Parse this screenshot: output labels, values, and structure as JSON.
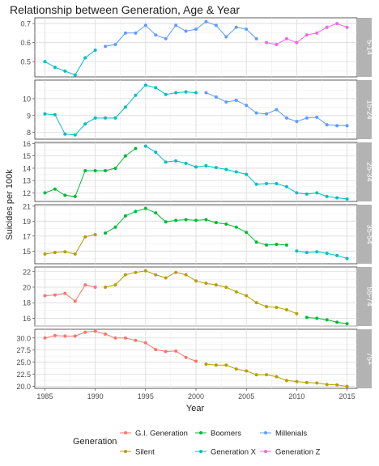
{
  "chart_data": {
    "type": "line",
    "title": "Relationship between Generation, Age & Year",
    "xlabel": "Year",
    "ylabel": "Suicides per 100k",
    "xlim": [
      1984,
      2016
    ],
    "x_ticks": [
      1985,
      1990,
      1995,
      2000,
      2005,
      2010,
      2015
    ],
    "grid": true,
    "legend": {
      "title": "Generation",
      "position": "bottom",
      "entries": [
        {
          "name": "G.I. Generation",
          "color": "#F8766D"
        },
        {
          "name": "Boomers",
          "color": "#00BA38"
        },
        {
          "name": "Millenials",
          "color": "#619CFF"
        },
        {
          "name": "Silent",
          "color": "#B79F00"
        },
        {
          "name": "Generation X",
          "color": "#00BFC4"
        },
        {
          "name": "Generation Z",
          "color": "#F564E3"
        }
      ]
    },
    "panels": [
      {
        "strip": "5-14",
        "ylim": [
          0.42,
          0.73
        ],
        "y_ticks": [
          0.5,
          0.6,
          0.7
        ],
        "y_tick_labels": [
          "0.5",
          "0.6",
          "0.7"
        ],
        "series": [
          {
            "generation": "Generation X",
            "color": "#00BFC4",
            "x": [
              1985,
              1986,
              1987,
              1988,
              1989,
              1990
            ],
            "y": [
              0.5,
              0.47,
              0.45,
              0.43,
              0.52,
              0.56
            ]
          },
          {
            "generation": "Millenials",
            "color": "#619CFF",
            "x": [
              1991,
              1992,
              1993,
              1994,
              1995,
              1996,
              1997,
              1998,
              1999,
              2000,
              2001,
              2002,
              2003,
              2004,
              2005,
              2006
            ],
            "y": [
              0.58,
              0.59,
              0.65,
              0.65,
              0.69,
              0.64,
              0.62,
              0.69,
              0.66,
              0.67,
              0.71,
              0.69,
              0.63,
              0.68,
              0.67,
              0.62
            ]
          },
          {
            "generation": "Generation Z",
            "color": "#F564E3",
            "x": [
              2007,
              2008,
              2009,
              2010,
              2011,
              2012,
              2013,
              2014,
              2015
            ],
            "y": [
              0.6,
              0.59,
              0.62,
              0.6,
              0.64,
              0.65,
              0.68,
              0.7,
              0.68
            ]
          }
        ]
      },
      {
        "strip": "15-24",
        "ylim": [
          7.6,
          11.1
        ],
        "y_ticks": [
          8,
          9,
          10
        ],
        "y_tick_labels": [
          "8",
          "9",
          "10"
        ],
        "series": [
          {
            "generation": "Generation X",
            "color": "#00BFC4",
            "x": [
              1985,
              1986,
              1987,
              1988,
              1989,
              1990,
              1991,
              1992,
              1993,
              1994,
              1995,
              1996,
              1997,
              1998,
              1999,
              2000
            ],
            "y": [
              9.1,
              9.05,
              7.9,
              7.85,
              8.5,
              8.85,
              8.85,
              8.85,
              9.5,
              10.2,
              10.8,
              10.65,
              10.25,
              10.35,
              10.4,
              10.35
            ]
          },
          {
            "generation": "Millenials",
            "color": "#619CFF",
            "x": [
              2001,
              2002,
              2003,
              2004,
              2005,
              2006,
              2007,
              2008,
              2009,
              2010,
              2011,
              2012,
              2013,
              2014,
              2015
            ],
            "y": [
              10.35,
              10.1,
              9.8,
              9.9,
              9.6,
              9.15,
              9.1,
              9.35,
              8.85,
              8.65,
              8.85,
              8.9,
              8.45,
              8.4,
              8.4
            ]
          }
        ]
      },
      {
        "strip": "25-34",
        "ylim": [
          11.3,
          16.1
        ],
        "y_ticks": [
          12,
          13,
          14,
          15,
          16
        ],
        "y_tick_labels": [
          "12",
          "13",
          "14",
          "15",
          "16"
        ],
        "series": [
          {
            "generation": "Boomers",
            "color": "#00BA38",
            "x": [
              1985,
              1986,
              1987,
              1988,
              1989,
              1990,
              1991,
              1992,
              1993,
              1994
            ],
            "y": [
              12.0,
              12.3,
              11.8,
              11.7,
              13.8,
              13.8,
              13.8,
              14.0,
              15.0,
              15.6
            ]
          },
          {
            "generation": "Generation X",
            "color": "#00BFC4",
            "x": [
              1995,
              1996,
              1997,
              1998,
              1999,
              2000,
              2001,
              2002,
              2003,
              2004,
              2005,
              2006,
              2007,
              2008,
              2009,
              2010,
              2011,
              2012,
              2013,
              2014,
              2015
            ],
            "y": [
              15.8,
              15.3,
              14.5,
              14.6,
              14.4,
              14.1,
              14.2,
              14.05,
              13.9,
              13.7,
              13.5,
              12.7,
              12.75,
              12.75,
              12.5,
              12.0,
              11.9,
              12.0,
              11.7,
              11.6,
              11.5
            ]
          }
        ]
      },
      {
        "strip": "35-54",
        "ylim": [
          13.3,
          21.2
        ],
        "y_ticks": [
          15,
          17,
          19,
          21
        ],
        "y_tick_labels": [
          "15",
          "17",
          "19",
          "21"
        ],
        "series": [
          {
            "generation": "Silent",
            "color": "#B79F00",
            "x": [
              1985,
              1986,
              1987,
              1988,
              1989,
              1990
            ],
            "y": [
              14.6,
              14.8,
              14.9,
              14.6,
              16.9,
              17.2
            ]
          },
          {
            "generation": "Boomers",
            "color": "#00BA38",
            "x": [
              1991,
              1992,
              1993,
              1994,
              1995,
              1996,
              1997,
              1998,
              1999,
              2000,
              2001,
              2002,
              2003,
              2004,
              2005,
              2006,
              2007,
              2008,
              2009
            ],
            "y": [
              17.4,
              18.2,
              19.7,
              20.3,
              20.7,
              20.1,
              18.9,
              19.1,
              19.2,
              19.1,
              19.2,
              18.8,
              18.6,
              18.2,
              17.5,
              16.2,
              15.8,
              15.9,
              15.8
            ]
          },
          {
            "generation": "Generation X",
            "color": "#00BFC4",
            "x": [
              2010,
              2011,
              2012,
              2013,
              2014,
              2015
            ],
            "y": [
              15.0,
              14.8,
              14.9,
              14.7,
              14.4,
              14.0
            ]
          }
        ]
      },
      {
        "strip": "55-74",
        "ylim": [
          15.0,
          22.6
        ],
        "y_ticks": [
          16,
          18,
          20,
          22
        ],
        "y_tick_labels": [
          "16",
          "18",
          "20",
          "22"
        ],
        "series": [
          {
            "generation": "G.I. Generation",
            "color": "#F8766D",
            "x": [
              1985,
              1986,
              1987,
              1988,
              1989,
              1990
            ],
            "y": [
              18.9,
              19.0,
              19.2,
              18.2,
              20.3,
              20.0
            ]
          },
          {
            "generation": "Silent",
            "color": "#B79F00",
            "x": [
              1991,
              1992,
              1993,
              1994,
              1995,
              1996,
              1997,
              1998,
              1999,
              2000,
              2001,
              2002,
              2003,
              2004,
              2005,
              2006,
              2007,
              2008,
              2009,
              2010
            ],
            "y": [
              20.0,
              20.3,
              21.6,
              21.9,
              22.1,
              21.6,
              21.2,
              21.9,
              21.6,
              20.8,
              20.5,
              20.3,
              20.0,
              19.4,
              18.9,
              18.0,
              17.5,
              17.4,
              17.1,
              16.6
            ]
          },
          {
            "generation": "Boomers",
            "color": "#00BA38",
            "x": [
              2011,
              2012,
              2013,
              2014,
              2015
            ],
            "y": [
              16.1,
              16.0,
              15.8,
              15.5,
              15.3
            ]
          }
        ]
      },
      {
        "strip": "75+",
        "ylim": [
          19.6,
          31.8
        ],
        "y_ticks": [
          20.0,
          22.5,
          25.0,
          27.5,
          30.0
        ],
        "y_tick_labels": [
          "20.0",
          "22.5",
          "25.0",
          "27.5",
          "30.0"
        ],
        "series": [
          {
            "generation": "G.I. Generation",
            "color": "#F8766D",
            "x": [
              1985,
              1986,
              1987,
              1988,
              1989,
              1990,
              1991,
              1992,
              1993,
              1994,
              1995,
              1996,
              1997,
              1998,
              1999,
              2000
            ],
            "y": [
              30.0,
              30.5,
              30.4,
              30.4,
              31.2,
              31.4,
              30.8,
              30.0,
              30.0,
              29.5,
              29.0,
              27.6,
              27.2,
              27.3,
              26.0,
              25.2
            ]
          },
          {
            "generation": "Silent",
            "color": "#B79F00",
            "x": [
              2001,
              2002,
              2003,
              2004,
              2005,
              2006,
              2007,
              2008,
              2009,
              2010,
              2011,
              2012,
              2013,
              2014,
              2015
            ],
            "y": [
              24.6,
              24.4,
              24.4,
              23.6,
              23.2,
              22.4,
              22.4,
              22.0,
              21.2,
              21.0,
              20.8,
              20.7,
              20.4,
              20.3,
              20.0
            ]
          }
        ]
      }
    ]
  }
}
